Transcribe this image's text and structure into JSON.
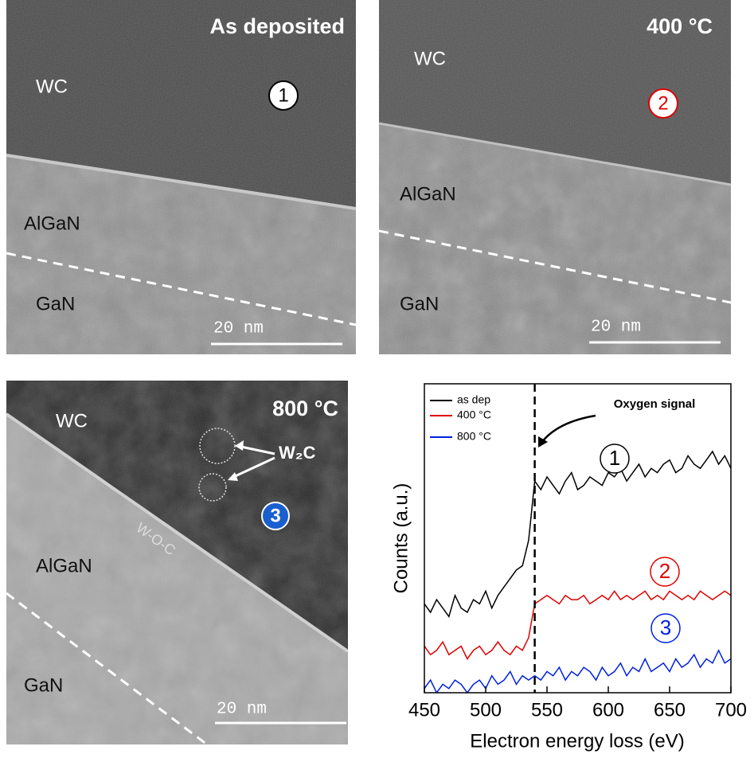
{
  "panels": [
    {
      "title": "As deposited",
      "labels": [
        "WC",
        "AlGaN",
        "GaN"
      ],
      "scale_bar": "20 nm",
      "marker": "1"
    },
    {
      "title": "400 °C",
      "labels": [
        "WC",
        "AlGaN",
        "GaN"
      ],
      "scale_bar": "20 nm",
      "marker": "2"
    },
    {
      "title": "800 °C",
      "labels": [
        "WC",
        "AlGaN",
        "GaN",
        "W-O-C",
        "W₂C"
      ],
      "scale_bar": "20 nm",
      "marker": "3"
    }
  ],
  "chart_data": {
    "type": "line",
    "xlabel": "Electron energy loss (eV)",
    "ylabel": "Counts (a.u.)",
    "annotation": "Oxygen signal",
    "markers": [
      "1",
      "2",
      "3"
    ],
    "edge_x": 540,
    "xlim": [
      450,
      700
    ],
    "xticks": [
      450,
      500,
      550,
      600,
      650,
      700
    ],
    "ylim": [
      0,
      7.3
    ],
    "x": [
      450,
      455,
      460,
      465,
      470,
      475,
      480,
      485,
      490,
      495,
      500,
      505,
      510,
      515,
      520,
      525,
      530,
      535,
      540,
      545,
      550,
      555,
      560,
      565,
      570,
      575,
      580,
      585,
      590,
      595,
      600,
      605,
      610,
      615,
      620,
      625,
      630,
      635,
      640,
      645,
      650,
      655,
      660,
      665,
      670,
      675,
      680,
      685,
      690,
      695,
      700
    ],
    "series": [
      {
        "name": "as dep",
        "color": "#000000",
        "values": [
          2.1,
          1.9,
          2.2,
          2.0,
          1.8,
          2.3,
          2.0,
          1.9,
          2.2,
          2.1,
          2.4,
          2.0,
          2.3,
          2.5,
          2.7,
          2.9,
          3.0,
          3.6,
          5.0,
          4.8,
          5.1,
          4.9,
          4.7,
          5.0,
          5.2,
          4.8,
          4.9,
          5.1,
          5.0,
          4.9,
          5.2,
          5.1,
          5.3,
          5.0,
          5.2,
          5.4,
          5.1,
          5.3,
          5.2,
          5.4,
          5.5,
          5.2,
          5.3,
          5.6,
          5.4,
          5.3,
          5.5,
          5.7,
          5.4,
          5.6,
          5.3
        ]
      },
      {
        "name": "400 °C",
        "color": "#e00000",
        "values": [
          1.1,
          0.9,
          1.0,
          1.2,
          0.9,
          1.0,
          1.1,
          0.8,
          1.0,
          1.1,
          0.9,
          1.0,
          1.2,
          1.0,
          0.9,
          1.1,
          1.0,
          1.3,
          2.1,
          2.2,
          2.3,
          2.2,
          2.1,
          2.3,
          2.2,
          2.2,
          2.3,
          2.1,
          2.2,
          2.3,
          2.2,
          2.4,
          2.2,
          2.3,
          2.2,
          2.3,
          2.4,
          2.2,
          2.3,
          2.2,
          2.4,
          2.3,
          2.2,
          2.3,
          2.2,
          2.4,
          2.3,
          2.2,
          2.3,
          2.4,
          2.3
        ]
      },
      {
        "name": "800 °C",
        "color": "#0020e0",
        "values": [
          0.1,
          0.3,
          0.0,
          0.2,
          0.1,
          0.3,
          0.2,
          0.0,
          0.2,
          0.3,
          0.1,
          0.4,
          0.2,
          0.3,
          0.5,
          0.2,
          0.4,
          0.3,
          0.4,
          0.3,
          0.5,
          0.4,
          0.6,
          0.3,
          0.5,
          0.4,
          0.6,
          0.5,
          0.3,
          0.6,
          0.4,
          0.5,
          0.7,
          0.4,
          0.6,
          0.5,
          0.8,
          0.5,
          0.6,
          0.7,
          0.5,
          0.8,
          0.6,
          0.7,
          0.9,
          0.6,
          0.8,
          0.7,
          1.0,
          0.7,
          0.8
        ]
      }
    ]
  }
}
